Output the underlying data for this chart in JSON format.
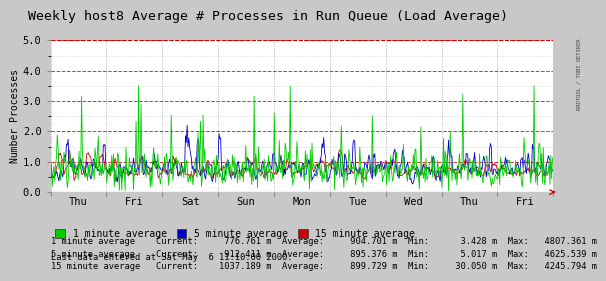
{
  "title": "Weekly host8 Average # Processes in Run Queue (Load Average)",
  "ylabel": "Number Processes",
  "ylim": [
    0.0,
    5.0
  ],
  "yticks": [
    0.0,
    1.0,
    2.0,
    3.0,
    4.0,
    5.0
  ],
  "x_day_labels": [
    "Thu",
    "Fri",
    "Sat",
    "Sun",
    "Mon",
    "Tue",
    "Wed",
    "Thu",
    "Fri"
  ],
  "color_1min": "#00cc00",
  "color_5min": "#0000cc",
  "color_15min": "#cc0000",
  "bg_color": "#c8c8c8",
  "plot_bg_color": "#ffffff",
  "grid_color_major": "#cc0000",
  "grid_color_minor": "#999999",
  "title_fontsize": 9.5,
  "label_fontsize": 7,
  "tick_fontsize": 7.5,
  "stats_line1": "1 minute average    Current:     776.761 m  Average:     904.701 m  Min:      3.428 m  Max:   4807.361 m",
  "stats_line2": "5 minute average    Current:     912.411 m  Average:     895.376 m  Min:      5.017 m  Max:   4625.539 m",
  "stats_line3": "15 minute average   Current:    1037.189 m  Average:     899.729 m  Min:     30.050 m  Max:   4245.794 m",
  "last_data_text": "Last data entered at Sat May  6 11:10:00 2000.",
  "seed": 42,
  "n_points": 600,
  "right_label": "RRDTOOL / TOBI OETIKER"
}
